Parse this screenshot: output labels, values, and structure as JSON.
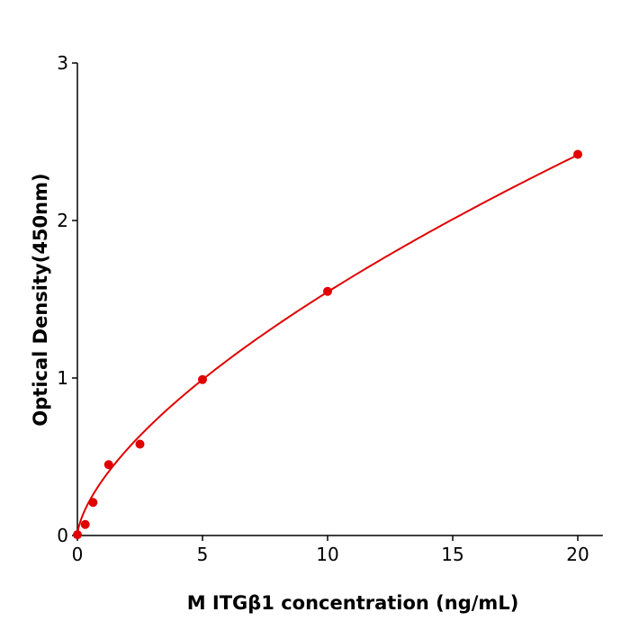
{
  "chart_data": {
    "type": "scatter",
    "title": "",
    "xlabel": "M  ITGβ1 concentration (ng/mL)",
    "ylabel": "Optical Density(450nm)",
    "xlim": [
      0,
      21
    ],
    "ylim": [
      0,
      3
    ],
    "xticks": [
      "0",
      "5",
      "10",
      "15",
      "20"
    ],
    "yticks": [
      "0",
      "1",
      "2",
      "3"
    ],
    "grid": false,
    "color": "#e00000",
    "series": [
      {
        "x": [
          0,
          0.3125,
          0.625,
          1.25,
          2.5,
          5,
          10,
          20
        ],
        "y": [
          0.005,
          0.07,
          0.21,
          0.45,
          0.58,
          0.99,
          1.55,
          2.42
        ]
      }
    ],
    "fit_curve": {
      "type": "power",
      "a": 0.351,
      "b": 0.644
    }
  }
}
